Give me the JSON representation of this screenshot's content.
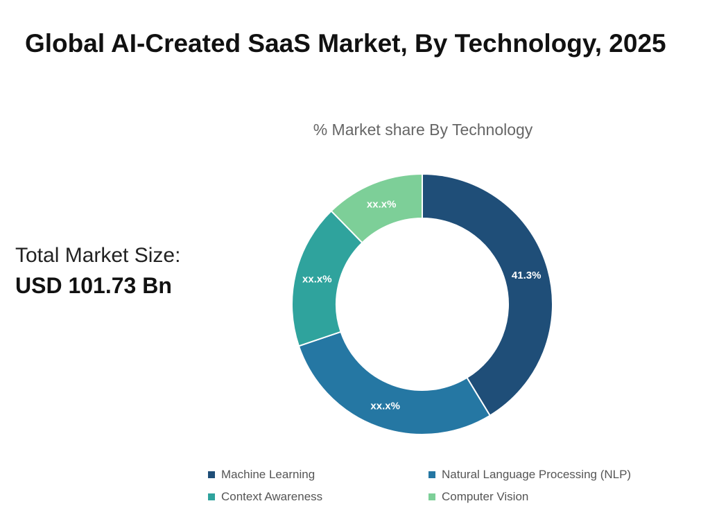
{
  "title": "Global AI-Created SaaS Market, By Technology, 2025",
  "total_market": {
    "label": "Total Market Size:",
    "value": "USD 101.73 Bn"
  },
  "chart_data": {
    "type": "pie",
    "subtitle": "% Market share By Technology",
    "categories": [
      "Machine Learning",
      "Natural Language Processing (NLP)",
      "Context Awareness",
      "Computer Vision"
    ],
    "values": [
      41.3,
      28.5,
      17.9,
      12.3
    ],
    "data_labels": [
      "41.3%",
      "xx.x%",
      "xx.x%",
      "xx.x%"
    ],
    "colors": [
      "#1f4e78",
      "#2577a3",
      "#2fa39d",
      "#7dcf98"
    ],
    "legend_position": "bottom"
  }
}
